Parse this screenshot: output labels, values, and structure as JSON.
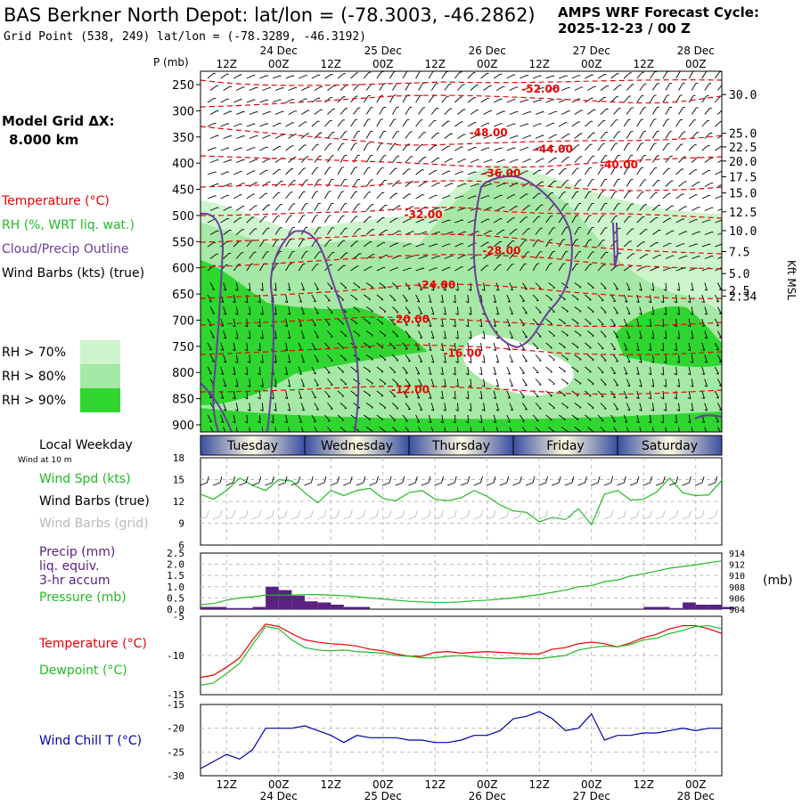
{
  "header": {
    "title": "BAS Berkner North Depot:  lat/lon = (-78.3003, -46.2862)",
    "cycle_line1": "AMPS WRF Forecast Cycle:",
    "cycle_line2": "2025-12-23 / 00  Z",
    "grid_point": "Grid Point (538, 249) lat/lon = (-78.3289, -46.3192)"
  },
  "colors": {
    "temperature": "#ee0000",
    "rh": "#22bb22",
    "cloud_outline": "#6a3d9a",
    "wind": "#000000",
    "wind_grid": "#bbbbbb",
    "precip": "#5a2082",
    "pressure": "#22bb22",
    "dewpoint": "#22bb22",
    "windchill": "#0000aa",
    "rh70": "#ccf5cc",
    "rh80": "#a6e8a6",
    "rh90": "#2fd62f",
    "day_bar_dark": "#3a4fa0",
    "day_bar_light": "#fffbe0"
  },
  "legend": {
    "model_grid_label": "Model Grid ΔX:",
    "model_grid_value": "8.000 km",
    "temperature": "Temperature (°C)",
    "rh": "RH (%, WRT liq. wat.)",
    "cloud": "Cloud/Precip Outline",
    "wind": "Wind Barbs (kts) (true)",
    "rh70": "RH > 70%",
    "rh80": "RH > 80%",
    "rh90": "RH > 90%"
  },
  "chart_data": [
    {
      "type": "time-height cross-section",
      "ylabel": "P (mb)",
      "y2label": "Kft MSL",
      "pressure_levels": [
        "250",
        "300",
        "350",
        "400",
        "450",
        "500",
        "550",
        "600",
        "650",
        "700",
        "750",
        "800",
        "850",
        "900"
      ],
      "height_levels": [
        {
          "p": 269,
          "label": "30.0"
        },
        {
          "p": 343,
          "label": "25.0"
        },
        {
          "p": 369,
          "label": "22.5"
        },
        {
          "p": 396,
          "label": "20.0"
        },
        {
          "p": 426,
          "label": "17.5"
        },
        {
          "p": 457,
          "label": "15.0"
        },
        {
          "p": 493,
          "label": "12.5"
        },
        {
          "p": 529,
          "label": "10.0"
        },
        {
          "p": 569,
          "label": "7.5"
        },
        {
          "p": 611,
          "label": "5.0"
        },
        {
          "p": 643,
          "label": "2.5"
        },
        {
          "p": 654,
          "label": "2.34"
        }
      ],
      "top_time_labels": [
        "12Z",
        "00Z",
        "12Z",
        "00Z",
        "12Z",
        "00Z",
        "12Z",
        "00Z",
        "12Z",
        "00Z"
      ],
      "top_date_labels": [
        "24 Dec",
        "25 Dec",
        "26 Dec",
        "27 Dec",
        "28 Dec"
      ],
      "temperature_contours": [
        {
          "label": "-52.00",
          "t": 26,
          "p": 265
        },
        {
          "label": "-48.00",
          "t": 22,
          "p": 349
        },
        {
          "label": "-44.00",
          "t": 27,
          "p": 380
        },
        {
          "label": "-40.00",
          "t": 32,
          "p": 410
        },
        {
          "label": "-36.00",
          "t": 23,
          "p": 426
        },
        {
          "label": "-32.00",
          "t": 17,
          "p": 505
        },
        {
          "label": "-28.00",
          "t": 23,
          "p": 574
        },
        {
          "label": "-24.00",
          "t": 18,
          "p": 640
        },
        {
          "label": "-20.00",
          "t": 16,
          "p": 705
        },
        {
          "label": "-16.00",
          "t": 20,
          "p": 770
        },
        {
          "label": "-12.00",
          "t": 16,
          "p": 840
        }
      ]
    },
    {
      "type": "line",
      "title": "Local Weekday",
      "subtitle": "Wind at 10 m",
      "days": [
        "Tuesday",
        "Wednesday",
        "Thursday",
        "Friday",
        "Saturday"
      ],
      "series_labels": [
        "Wind Spd (kts)",
        "Wind Barbs (true)",
        "Wind Barbs (grid)"
      ],
      "yticks": [
        "18",
        "15",
        "12",
        "9",
        "6"
      ],
      "ylim": [
        6,
        18
      ],
      "series": [
        {
          "name": "Wind Spd (kts)",
          "t": [
            0,
            1,
            2,
            3,
            4,
            5,
            6,
            7,
            8,
            9,
            10,
            11,
            12,
            13,
            14,
            15,
            16,
            17,
            18,
            19,
            20,
            21,
            22,
            23,
            24,
            25,
            26,
            27,
            28,
            29,
            30,
            31,
            32,
            33,
            34,
            35,
            36,
            37,
            38,
            39,
            40
          ],
          "values": [
            13,
            12.3,
            13.5,
            15.2,
            14.2,
            13.5,
            15,
            14.8,
            13.2,
            11.8,
            13.5,
            12.8,
            13.5,
            13.8,
            12.4,
            12.1,
            13.2,
            13.5,
            12.3,
            12.1,
            12.5,
            13.5,
            12.7,
            11.5,
            10.7,
            10.5,
            9.2,
            9.8,
            9.5,
            11,
            8.8,
            13,
            13.5,
            12.2,
            12.3,
            13.3,
            15.2,
            13.2,
            12.8,
            12.9,
            14.9
          ]
        }
      ]
    },
    {
      "type": "bar+line",
      "series_labels": [
        "Precip (mm)",
        "liq. equiv.",
        "3-hr accum",
        "Pressure (mb)"
      ],
      "yticks": [
        "2.5",
        "2.0",
        "1.5",
        "1.0",
        "0.5",
        "0.0"
      ],
      "ylim": [
        0,
        2.5
      ],
      "y2label": "(mb)",
      "y2ticks": [
        "914",
        "912",
        "910",
        "908",
        "906",
        "904"
      ],
      "y2lim": [
        904,
        914
      ],
      "series": [
        {
          "name": "Precip (mm)",
          "t": [
            0,
            1,
            2,
            3,
            4,
            5,
            6,
            7,
            8,
            9,
            10,
            11,
            12,
            13,
            14,
            15,
            16,
            17,
            18,
            19,
            20,
            21,
            22,
            23,
            24,
            25,
            26,
            27,
            28,
            29,
            30,
            31,
            32,
            33,
            34,
            35,
            36,
            37,
            38,
            39,
            40
          ],
          "values": [
            0.1,
            0.1,
            0.05,
            0.05,
            0.1,
            1,
            0.85,
            0.6,
            0.35,
            0.3,
            0.2,
            0.1,
            0.1,
            0,
            0,
            0,
            0,
            0,
            0,
            0,
            0,
            0,
            0,
            0,
            0,
            0,
            0,
            0,
            0,
            0,
            0,
            0,
            0,
            0,
            0.1,
            0.1,
            0.05,
            0.3,
            0.2,
            0.2,
            0.1
          ]
        },
        {
          "name": "Pressure (mb)",
          "t": [
            0,
            1,
            2,
            3,
            4,
            5,
            6,
            7,
            8,
            9,
            10,
            11,
            12,
            13,
            14,
            15,
            16,
            17,
            18,
            19,
            20,
            21,
            22,
            23,
            24,
            25,
            26,
            27,
            28,
            29,
            30,
            31,
            32,
            33,
            34,
            35,
            36,
            37,
            38,
            39,
            40
          ],
          "values": [
            904.8,
            905,
            905.6,
            906,
            906.2,
            906.5,
            906.5,
            906.5,
            906.6,
            906.6,
            906.5,
            906.4,
            906.2,
            906,
            905.8,
            905.6,
            905.4,
            905.3,
            905.2,
            905.2,
            905.3,
            905.5,
            905.6,
            905.8,
            906,
            906.3,
            906.6,
            907,
            907.4,
            908,
            908.2,
            908.9,
            909.2,
            909.9,
            910.3,
            910.8,
            911.3,
            911.6,
            911.9,
            912.3,
            912.6
          ]
        }
      ]
    },
    {
      "type": "line",
      "series_labels": [
        "Temperature (°C)",
        "Dewpoint (°C)"
      ],
      "yticks": [
        "-5",
        "-10",
        "-15"
      ],
      "ylim": [
        -15,
        -5
      ],
      "series": [
        {
          "name": "Temperature (°C)",
          "t": [
            0,
            1,
            2,
            3,
            4,
            5,
            6,
            7,
            8,
            9,
            10,
            11,
            12,
            13,
            14,
            15,
            16,
            17,
            18,
            19,
            20,
            21,
            22,
            23,
            24,
            25,
            26,
            27,
            28,
            29,
            30,
            31,
            32,
            33,
            34,
            35,
            36,
            37,
            38,
            39,
            40
          ],
          "values": [
            -12.8,
            -12.5,
            -11.5,
            -10.3,
            -8,
            -6,
            -6.3,
            -7.2,
            -8,
            -8.3,
            -8.5,
            -8.6,
            -8.8,
            -9.2,
            -9.4,
            -9.8,
            -10.1,
            -10.1,
            -9.6,
            -9.5,
            -9.7,
            -9.6,
            -9.5,
            -9.6,
            -9.7,
            -9.8,
            -9.8,
            -9.2,
            -9,
            -8.5,
            -8.3,
            -8.5,
            -8.9,
            -8.4,
            -7.7,
            -7.3,
            -6.6,
            -6.2,
            -6.2,
            -6.6,
            -7.2
          ]
        },
        {
          "name": "Dewpoint (°C)",
          "t": [
            0,
            1,
            2,
            3,
            4,
            5,
            6,
            7,
            8,
            9,
            10,
            11,
            12,
            13,
            14,
            15,
            16,
            17,
            18,
            19,
            20,
            21,
            22,
            23,
            24,
            25,
            26,
            27,
            28,
            29,
            30,
            31,
            32,
            33,
            34,
            35,
            36,
            37,
            38,
            39,
            40
          ],
          "values": [
            -13.8,
            -13.5,
            -12.3,
            -11,
            -8.6,
            -6.3,
            -6.6,
            -8,
            -9,
            -9.3,
            -9.4,
            -9.3,
            -9.5,
            -9.6,
            -9.7,
            -10,
            -10.1,
            -10.3,
            -10.3,
            -10.1,
            -10,
            -10.2,
            -10.3,
            -10.4,
            -10.3,
            -10.4,
            -10.4,
            -10.2,
            -10,
            -9.3,
            -9,
            -8.8,
            -8.9,
            -8.6,
            -8,
            -7.8,
            -7.2,
            -6.8,
            -6.3,
            -6.2,
            -6.6
          ]
        }
      ]
    },
    {
      "type": "line",
      "series_labels": [
        "Wind Chill T (°C)"
      ],
      "yticks": [
        "-15",
        "-20",
        "-25",
        "-30"
      ],
      "ylim": [
        -30,
        -15
      ],
      "bottom_time_labels": [
        "12Z",
        "00Z",
        "12Z",
        "00Z",
        "12Z",
        "00Z",
        "12Z",
        "00Z",
        "12Z",
        "00Z"
      ],
      "bottom_date_labels": [
        "24 Dec",
        "25 Dec",
        "26 Dec",
        "27 Dec",
        "28 Dec"
      ],
      "series": [
        {
          "name": "Wind Chill T (°C)",
          "t": [
            0,
            1,
            2,
            3,
            4,
            5,
            6,
            7,
            8,
            9,
            10,
            11,
            12,
            13,
            14,
            15,
            16,
            17,
            18,
            19,
            20,
            21,
            22,
            23,
            24,
            25,
            26,
            27,
            28,
            29,
            30,
            31,
            32,
            33,
            34,
            35,
            36,
            37,
            38,
            39,
            40
          ],
          "values": [
            -28.5,
            -27,
            -25.5,
            -26.5,
            -24.5,
            -20,
            -20,
            -20,
            -19.5,
            -20.5,
            -21.5,
            -23,
            -21.5,
            -22,
            -22,
            -22,
            -22.5,
            -22.5,
            -23,
            -23,
            -22.5,
            -21.5,
            -21.5,
            -20.5,
            -18,
            -17.5,
            -16.5,
            -18,
            -20.5,
            -20,
            -17,
            -22.5,
            -21.5,
            -21.5,
            -21,
            -21,
            -20.5,
            -20,
            -20.5,
            -20,
            -20
          ]
        }
      ]
    }
  ]
}
